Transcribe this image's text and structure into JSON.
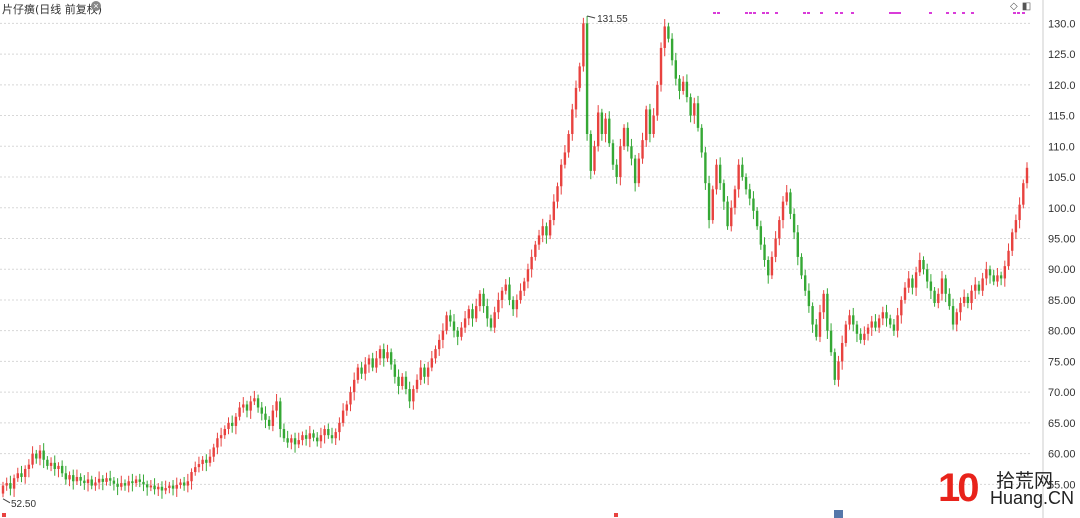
{
  "header": {
    "title": "片仔癀(日线 前复权)",
    "settings_icon": "circle-x-icon",
    "tools": [
      "diamond-icon",
      "panel-icon"
    ]
  },
  "watermark": {
    "number": "10",
    "cn": "拾荒网",
    "en": "Huang.CN"
  },
  "colors": {
    "up": "#e8423f",
    "down": "#35a835",
    "grid": "#d8d8d8",
    "event": "#d93cd9"
  },
  "chart_data": {
    "type": "candlestick",
    "y_ticks": [
      "130.0",
      "125.0",
      "120.0",
      "115.0",
      "110.0",
      "105.0",
      "100.0",
      "95.00",
      "90.00",
      "85.00",
      "80.00",
      "75.00",
      "70.00",
      "65.00",
      "60.00",
      "55.00"
    ],
    "ylim": [
      50.5,
      132.5
    ],
    "grid": true,
    "annotations": {
      "high_label": "131.55",
      "low_label": "52.50"
    },
    "series": [
      {
        "o": 53.5,
        "c": 54.8
      },
      {
        "o": 54.8,
        "c": 55.2
      },
      {
        "o": 55.2,
        "c": 54.3
      },
      {
        "o": 54.3,
        "c": 56.0
      },
      {
        "o": 56.0,
        "c": 56.8
      },
      {
        "o": 56.8,
        "c": 56.2
      },
      {
        "o": 56.2,
        "c": 57.5
      },
      {
        "o": 57.5,
        "c": 58.2
      },
      {
        "o": 58.2,
        "c": 60.0
      },
      {
        "o": 60.0,
        "c": 59.2
      },
      {
        "o": 59.2,
        "c": 60.5
      },
      {
        "o": 60.5,
        "c": 59.0
      },
      {
        "o": 59.0,
        "c": 58.0
      },
      {
        "o": 58.0,
        "c": 58.5
      },
      {
        "o": 58.5,
        "c": 57.5
      },
      {
        "o": 57.5,
        "c": 58.0
      },
      {
        "o": 58.0,
        "c": 56.8
      },
      {
        "o": 56.8,
        "c": 55.8
      },
      {
        "o": 55.8,
        "c": 56.5
      },
      {
        "o": 56.5,
        "c": 55.5
      },
      {
        "o": 55.5,
        "c": 56.2
      },
      {
        "o": 56.2,
        "c": 55.6
      },
      {
        "o": 55.6,
        "c": 55.2
      },
      {
        "o": 55.2,
        "c": 55.8
      },
      {
        "o": 55.8,
        "c": 54.8
      },
      {
        "o": 54.8,
        "c": 55.3
      },
      {
        "o": 55.3,
        "c": 55.9
      },
      {
        "o": 55.9,
        "c": 55.4
      },
      {
        "o": 55.4,
        "c": 56.0
      },
      {
        "o": 56.0,
        "c": 55.6
      },
      {
        "o": 55.6,
        "c": 55.1
      },
      {
        "o": 55.1,
        "c": 54.6
      },
      {
        "o": 54.6,
        "c": 55.2
      },
      {
        "o": 55.2,
        "c": 54.8
      },
      {
        "o": 54.8,
        "c": 55.5
      },
      {
        "o": 55.5,
        "c": 55.2
      },
      {
        "o": 55.2,
        "c": 55.8
      },
      {
        "o": 55.8,
        "c": 55.4
      },
      {
        "o": 55.4,
        "c": 55.0
      },
      {
        "o": 55.0,
        "c": 54.5
      },
      {
        "o": 54.5,
        "c": 54.8
      },
      {
        "o": 54.8,
        "c": 54.2
      },
      {
        "o": 54.2,
        "c": 54.6
      },
      {
        "o": 54.6,
        "c": 54.0
      },
      {
        "o": 54.0,
        "c": 54.4
      },
      {
        "o": 54.4,
        "c": 54.8
      },
      {
        "o": 54.8,
        "c": 54.3
      },
      {
        "o": 54.3,
        "c": 54.9
      },
      {
        "o": 54.9,
        "c": 55.3
      },
      {
        "o": 55.3,
        "c": 54.8
      },
      {
        "o": 54.8,
        "c": 55.5
      },
      {
        "o": 55.5,
        "c": 57.0
      },
      {
        "o": 57.0,
        "c": 57.8
      },
      {
        "o": 57.8,
        "c": 58.3
      },
      {
        "o": 58.3,
        "c": 59.0
      },
      {
        "o": 59.0,
        "c": 58.5
      },
      {
        "o": 58.5,
        "c": 59.5
      },
      {
        "o": 59.5,
        "c": 61.0
      },
      {
        "o": 61.0,
        "c": 62.5
      },
      {
        "o": 62.5,
        "c": 63.0
      },
      {
        "o": 63.0,
        "c": 64.0
      },
      {
        "o": 64.0,
        "c": 65.0
      },
      {
        "o": 65.0,
        "c": 64.5
      },
      {
        "o": 64.5,
        "c": 66.0
      },
      {
        "o": 66.0,
        "c": 67.5
      },
      {
        "o": 67.5,
        "c": 68.0
      },
      {
        "o": 68.0,
        "c": 67.0
      },
      {
        "o": 67.0,
        "c": 68.5
      },
      {
        "o": 68.5,
        "c": 69.0
      },
      {
        "o": 69.0,
        "c": 67.5
      },
      {
        "o": 67.5,
        "c": 66.5
      },
      {
        "o": 66.5,
        "c": 65.5
      },
      {
        "o": 65.5,
        "c": 64.5
      },
      {
        "o": 64.5,
        "c": 67.0
      },
      {
        "o": 67.0,
        "c": 68.5
      },
      {
        "o": 68.5,
        "c": 64.0
      },
      {
        "o": 64.0,
        "c": 62.5
      },
      {
        "o": 62.5,
        "c": 61.8
      },
      {
        "o": 61.8,
        "c": 62.5
      },
      {
        "o": 62.5,
        "c": 61.5
      },
      {
        "o": 61.5,
        "c": 62.2
      },
      {
        "o": 62.2,
        "c": 63.0
      },
      {
        "o": 63.0,
        "c": 62.4
      },
      {
        "o": 62.4,
        "c": 63.3
      },
      {
        "o": 63.3,
        "c": 62.6
      },
      {
        "o": 62.6,
        "c": 62.0
      },
      {
        "o": 62.0,
        "c": 63.0
      },
      {
        "o": 63.0,
        "c": 64.0
      },
      {
        "o": 64.0,
        "c": 63.0
      },
      {
        "o": 63.0,
        "c": 62.5
      },
      {
        "o": 62.5,
        "c": 63.5
      },
      {
        "o": 63.5,
        "c": 65.0
      },
      {
        "o": 65.0,
        "c": 67.0
      },
      {
        "o": 67.0,
        "c": 68.0
      },
      {
        "o": 68.0,
        "c": 70.0
      },
      {
        "o": 70.0,
        "c": 72.0
      },
      {
        "o": 72.0,
        "c": 74.0
      },
      {
        "o": 74.0,
        "c": 73.0
      },
      {
        "o": 73.0,
        "c": 74.5
      },
      {
        "o": 74.5,
        "c": 75.5
      },
      {
        "o": 75.5,
        "c": 74.0
      },
      {
        "o": 74.0,
        "c": 75.5
      },
      {
        "o": 75.5,
        "c": 77.0
      },
      {
        "o": 77.0,
        "c": 75.5
      },
      {
        "o": 75.5,
        "c": 76.5
      },
      {
        "o": 76.5,
        "c": 74.5
      },
      {
        "o": 74.5,
        "c": 72.5
      },
      {
        "o": 72.5,
        "c": 71.0
      },
      {
        "o": 71.0,
        "c": 72.5
      },
      {
        "o": 72.5,
        "c": 70.5
      },
      {
        "o": 70.5,
        "c": 68.5
      },
      {
        "o": 68.5,
        "c": 70.5
      },
      {
        "o": 70.5,
        "c": 72.0
      },
      {
        "o": 72.0,
        "c": 74.0
      },
      {
        "o": 74.0,
        "c": 72.5
      },
      {
        "o": 72.5,
        "c": 74.0
      },
      {
        "o": 74.0,
        "c": 75.5
      },
      {
        "o": 75.5,
        "c": 77.0
      },
      {
        "o": 77.0,
        "c": 78.5
      },
      {
        "o": 78.5,
        "c": 80.0
      },
      {
        "o": 80.0,
        "c": 82.5
      },
      {
        "o": 82.5,
        "c": 81.5
      },
      {
        "o": 81.5,
        "c": 80.0
      },
      {
        "o": 80.0,
        "c": 79.0
      },
      {
        "o": 79.0,
        "c": 80.5
      },
      {
        "o": 80.5,
        "c": 82.0
      },
      {
        "o": 82.0,
        "c": 83.5
      },
      {
        "o": 83.5,
        "c": 82.0
      },
      {
        "o": 82.0,
        "c": 84.0
      },
      {
        "o": 84.0,
        "c": 86.0
      },
      {
        "o": 86.0,
        "c": 84.0
      },
      {
        "o": 84.0,
        "c": 82.0
      },
      {
        "o": 82.0,
        "c": 80.5
      },
      {
        "o": 80.5,
        "c": 83.0
      },
      {
        "o": 83.0,
        "c": 85.0
      },
      {
        "o": 85.0,
        "c": 86.5
      },
      {
        "o": 86.5,
        "c": 87.5
      },
      {
        "o": 87.5,
        "c": 85.0
      },
      {
        "o": 85.0,
        "c": 83.5
      },
      {
        "o": 83.5,
        "c": 85.0
      },
      {
        "o": 85.0,
        "c": 86.5
      },
      {
        "o": 86.5,
        "c": 88.0
      },
      {
        "o": 88.0,
        "c": 90.0
      },
      {
        "o": 90.0,
        "c": 92.0
      },
      {
        "o": 92.0,
        "c": 94.0
      },
      {
        "o": 94.0,
        "c": 95.5
      },
      {
        "o": 95.5,
        "c": 97.0
      },
      {
        "o": 97.0,
        "c": 95.5
      },
      {
        "o": 95.5,
        "c": 98.0
      },
      {
        "o": 98.0,
        "c": 101.0
      },
      {
        "o": 101.0,
        "c": 103.5
      },
      {
        "o": 103.5,
        "c": 107.0
      },
      {
        "o": 107.0,
        "c": 109.0
      },
      {
        "o": 109.0,
        "c": 112.0
      },
      {
        "o": 112.0,
        "c": 116.0
      },
      {
        "o": 116.0,
        "c": 119.5
      },
      {
        "o": 119.5,
        "c": 123.0
      },
      {
        "o": 123.0,
        "c": 130.0
      },
      {
        "o": 130.0,
        "c": 112.0
      },
      {
        "o": 112.0,
        "c": 106.0
      },
      {
        "o": 106.0,
        "c": 110.0
      },
      {
        "o": 110.0,
        "c": 115.5
      },
      {
        "o": 115.5,
        "c": 112.0
      },
      {
        "o": 112.0,
        "c": 114.5
      },
      {
        "o": 114.5,
        "c": 110.5
      },
      {
        "o": 110.5,
        "c": 107.0
      },
      {
        "o": 107.0,
        "c": 105.0
      },
      {
        "o": 105.0,
        "c": 110.0
      },
      {
        "o": 110.0,
        "c": 113.0
      },
      {
        "o": 113.0,
        "c": 110.0
      },
      {
        "o": 110.0,
        "c": 108.0
      },
      {
        "o": 108.0,
        "c": 104.0
      },
      {
        "o": 104.0,
        "c": 108.0
      },
      {
        "o": 108.0,
        "c": 111.0
      },
      {
        "o": 111.0,
        "c": 116.0
      },
      {
        "o": 116.0,
        "c": 112.0
      },
      {
        "o": 112.0,
        "c": 115.0
      },
      {
        "o": 115.0,
        "c": 120.0
      },
      {
        "o": 120.0,
        "c": 126.0
      },
      {
        "o": 126.0,
        "c": 129.5
      },
      {
        "o": 129.5,
        "c": 127.5
      },
      {
        "o": 127.5,
        "c": 124.0
      },
      {
        "o": 124.0,
        "c": 121.0
      },
      {
        "o": 121.0,
        "c": 119.0
      },
      {
        "o": 119.0,
        "c": 120.5
      },
      {
        "o": 120.5,
        "c": 118.0
      },
      {
        "o": 118.0,
        "c": 115.0
      },
      {
        "o": 115.0,
        "c": 117.0
      },
      {
        "o": 117.0,
        "c": 113.0
      },
      {
        "o": 113.0,
        "c": 109.0
      },
      {
        "o": 109.0,
        "c": 104.0
      },
      {
        "o": 104.0,
        "c": 98.0
      },
      {
        "o": 98.0,
        "c": 103.0
      },
      {
        "o": 103.0,
        "c": 107.0
      },
      {
        "o": 107.0,
        "c": 104.0
      },
      {
        "o": 104.0,
        "c": 101.0
      },
      {
        "o": 101.0,
        "c": 97.0
      },
      {
        "o": 97.0,
        "c": 100.0
      },
      {
        "o": 100.0,
        "c": 103.0
      },
      {
        "o": 103.0,
        "c": 107.0
      },
      {
        "o": 107.0,
        "c": 105.0
      },
      {
        "o": 105.0,
        "c": 103.0
      },
      {
        "o": 103.0,
        "c": 101.5
      },
      {
        "o": 101.5,
        "c": 99.5
      },
      {
        "o": 99.5,
        "c": 97.0
      },
      {
        "o": 97.0,
        "c": 94.0
      },
      {
        "o": 94.0,
        "c": 91.5
      },
      {
        "o": 91.5,
        "c": 89.0
      },
      {
        "o": 89.0,
        "c": 92.0
      },
      {
        "o": 92.0,
        "c": 95.0
      },
      {
        "o": 95.0,
        "c": 98.0
      },
      {
        "o": 98.0,
        "c": 101.0
      },
      {
        "o": 101.0,
        "c": 102.5
      },
      {
        "o": 102.5,
        "c": 99.0
      },
      {
        "o": 99.0,
        "c": 96.0
      },
      {
        "o": 96.0,
        "c": 92.0
      },
      {
        "o": 92.0,
        "c": 89.0
      },
      {
        "o": 89.0,
        "c": 86.5
      },
      {
        "o": 86.5,
        "c": 84.0
      },
      {
        "o": 84.0,
        "c": 81.0
      },
      {
        "o": 81.0,
        "c": 79.0
      },
      {
        "o": 79.0,
        "c": 83.0
      },
      {
        "o": 83.0,
        "c": 86.0
      },
      {
        "o": 86.0,
        "c": 80.0
      },
      {
        "o": 80.0,
        "c": 76.5
      },
      {
        "o": 76.5,
        "c": 72.0
      },
      {
        "o": 72.0,
        "c": 75.0
      },
      {
        "o": 75.0,
        "c": 78.0
      },
      {
        "o": 78.0,
        "c": 81.0
      },
      {
        "o": 81.0,
        "c": 82.5
      },
      {
        "o": 82.5,
        "c": 81.0
      },
      {
        "o": 81.0,
        "c": 79.5
      },
      {
        "o": 79.5,
        "c": 78.5
      },
      {
        "o": 78.5,
        "c": 79.5
      },
      {
        "o": 79.5,
        "c": 80.5
      },
      {
        "o": 80.5,
        "c": 81.5
      },
      {
        "o": 81.5,
        "c": 80.5
      },
      {
        "o": 80.5,
        "c": 82.0
      },
      {
        "o": 82.0,
        "c": 83.0
      },
      {
        "o": 83.0,
        "c": 82.0
      },
      {
        "o": 82.0,
        "c": 81.0
      },
      {
        "o": 81.0,
        "c": 80.0
      },
      {
        "o": 80.0,
        "c": 82.5
      },
      {
        "o": 82.5,
        "c": 85.0
      },
      {
        "o": 85.0,
        "c": 87.0
      },
      {
        "o": 87.0,
        "c": 88.5
      },
      {
        "o": 88.5,
        "c": 87.0
      },
      {
        "o": 87.0,
        "c": 89.5
      },
      {
        "o": 89.5,
        "c": 91.5
      },
      {
        "o": 91.5,
        "c": 90.0
      },
      {
        "o": 90.0,
        "c": 88.0
      },
      {
        "o": 88.0,
        "c": 86.5
      },
      {
        "o": 86.5,
        "c": 84.5
      },
      {
        "o": 84.5,
        "c": 86.0
      },
      {
        "o": 86.0,
        "c": 88.5
      },
      {
        "o": 88.5,
        "c": 86.0
      },
      {
        "o": 86.0,
        "c": 84.0
      },
      {
        "o": 84.0,
        "c": 81.0
      },
      {
        "o": 81.0,
        "c": 83.0
      },
      {
        "o": 83.0,
        "c": 84.5
      },
      {
        "o": 84.5,
        "c": 85.5
      },
      {
        "o": 85.5,
        "c": 84.5
      },
      {
        "o": 84.5,
        "c": 86.5
      },
      {
        "o": 86.5,
        "c": 87.5
      },
      {
        "o": 87.5,
        "c": 86.5
      },
      {
        "o": 86.5,
        "c": 88.5
      },
      {
        "o": 88.5,
        "c": 90.0
      },
      {
        "o": 90.0,
        "c": 89.0
      },
      {
        "o": 89.0,
        "c": 88.0
      },
      {
        "o": 88.0,
        "c": 89.0
      },
      {
        "o": 89.0,
        "c": 88.5
      },
      {
        "o": 88.5,
        "c": 90.5
      },
      {
        "o": 90.5,
        "c": 93.0
      },
      {
        "o": 93.0,
        "c": 96.0
      },
      {
        "o": 96.0,
        "c": 98.0
      },
      {
        "o": 98.0,
        "c": 100.5
      },
      {
        "o": 100.5,
        "c": 104.0
      },
      {
        "o": 104.0,
        "c": 106.5
      }
    ]
  }
}
